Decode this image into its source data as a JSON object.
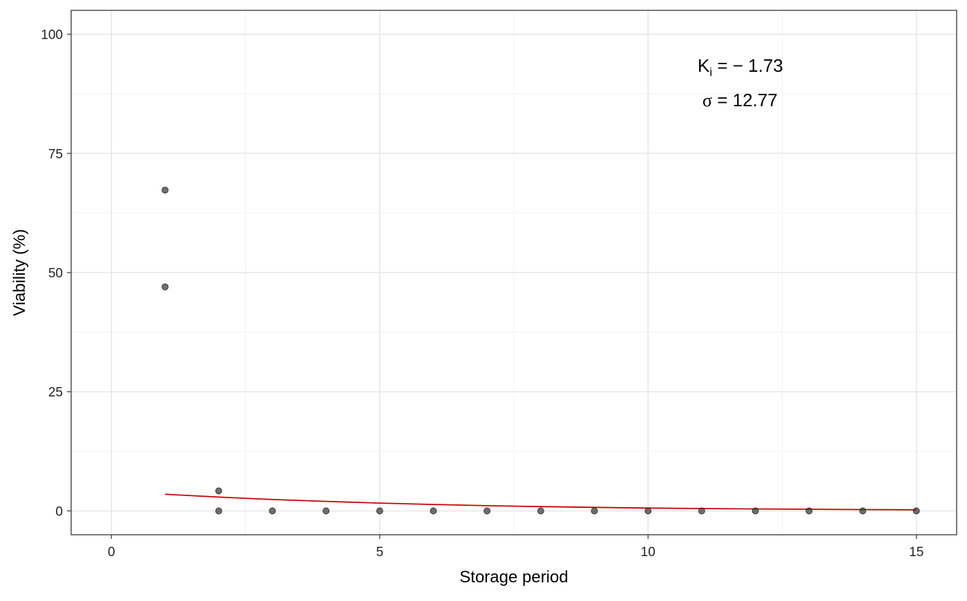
{
  "chart_data": {
    "type": "scatter",
    "title": "",
    "xlabel": "Storage period",
    "ylabel": "Viability (%)",
    "xlim": [
      -0.75,
      15.75
    ],
    "ylim": [
      -5,
      105
    ],
    "x_ticks": [
      0,
      5,
      10,
      15
    ],
    "y_ticks": [
      0,
      25,
      50,
      75,
      100
    ],
    "x_tick_labels": [
      "0",
      "5",
      "10",
      "15"
    ],
    "y_tick_labels": [
      "0",
      "25",
      "50",
      "75",
      "100"
    ],
    "grid": true,
    "legend": "none",
    "point_color": "#333333",
    "fit_color": "#CC0000",
    "points": [
      {
        "x": 1,
        "y": 67.3
      },
      {
        "x": 1,
        "y": 47.0
      },
      {
        "x": 2,
        "y": 4.2
      },
      {
        "x": 2,
        "y": 0
      },
      {
        "x": 3,
        "y": 0
      },
      {
        "x": 4,
        "y": 0
      },
      {
        "x": 5,
        "y": 0
      },
      {
        "x": 6,
        "y": 0
      },
      {
        "x": 7,
        "y": 0
      },
      {
        "x": 8,
        "y": 0
      },
      {
        "x": 9,
        "y": 0
      },
      {
        "x": 10,
        "y": 0
      },
      {
        "x": 11,
        "y": 0
      },
      {
        "x": 12,
        "y": 0
      },
      {
        "x": 13,
        "y": 0
      },
      {
        "x": 14,
        "y": 0
      },
      {
        "x": 15,
        "y": 0
      }
    ],
    "fit_line": {
      "x": [
        1,
        2,
        3,
        4,
        5,
        6,
        7,
        8,
        9,
        10,
        11,
        12,
        13,
        14,
        15
      ],
      "y": [
        3.5,
        2.9,
        2.4,
        2.0,
        1.65,
        1.35,
        1.1,
        0.9,
        0.75,
        0.6,
        0.5,
        0.42,
        0.35,
        0.29,
        0.24
      ]
    },
    "annotations": {
      "ki_symbol": "K",
      "ki_subscript": "i",
      "ki_value": " = − 1.73",
      "sigma_symbol": "σ",
      "sigma_value": " = 12.77"
    }
  }
}
